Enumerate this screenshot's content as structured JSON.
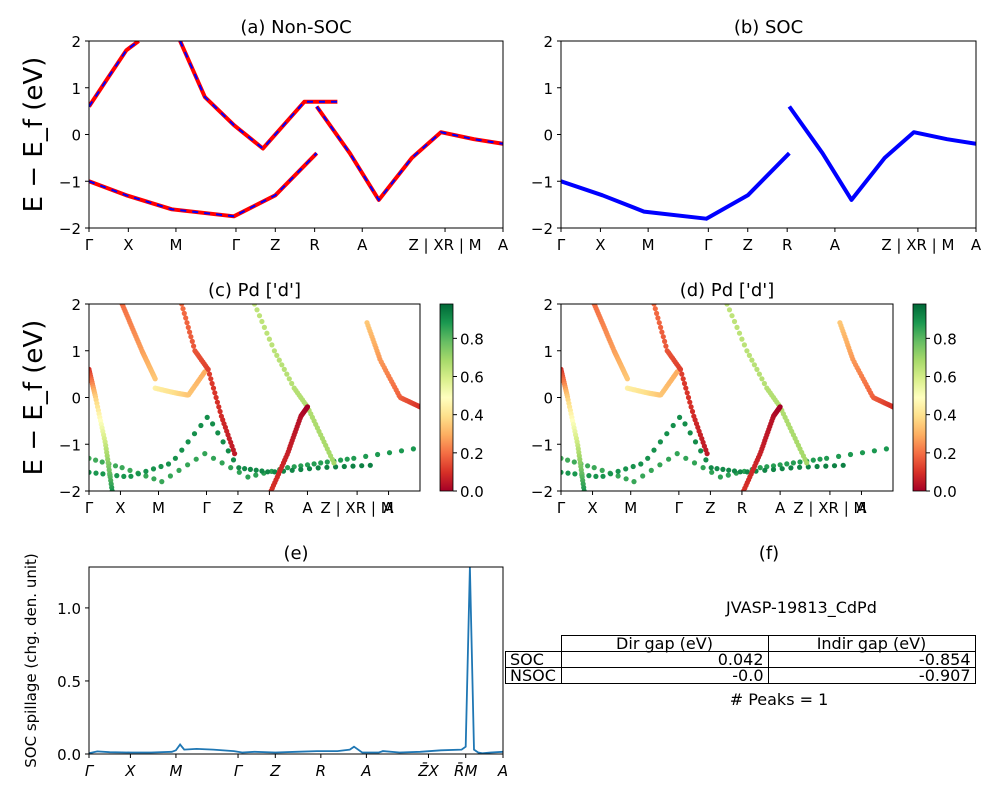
{
  "chart_data": [
    {
      "type": "line",
      "title": "(a) Non-SOC",
      "ylabel": "E − E_f (eV)",
      "ylim": [
        -2,
        2
      ],
      "yticks": [
        "−2",
        "−1",
        "0",
        "1",
        "2"
      ],
      "xticks": [
        "Γ",
        "X",
        "M",
        "Γ",
        "Z",
        "R",
        "A",
        "Z | XR | M",
        "A"
      ],
      "series": [
        {
          "color": "#ff0000",
          "dash_color": "#0000ff",
          "x": [
            0,
            0.045,
            0.09,
            0.12
          ],
          "y": [
            0.6,
            1.2,
            1.8,
            2.0
          ]
        },
        {
          "color": "#ff0000",
          "dash_color": "#0000ff",
          "x": [
            0,
            0.09,
            0.2,
            0.35,
            0.45,
            0.55
          ],
          "y": [
            -1.0,
            -1.3,
            -1.6,
            -1.75,
            -1.3,
            -0.4
          ]
        },
        {
          "color": "#ff0000",
          "dash_color": "#0000ff",
          "x": [
            0.22,
            0.28,
            0.35,
            0.42,
            0.52,
            0.6
          ],
          "y": [
            2.0,
            0.8,
            0.2,
            -0.3,
            0.7,
            0.7
          ]
        },
        {
          "color": "#ff0000",
          "dash_color": "#0000ff",
          "x": [
            0.55,
            0.63,
            0.7,
            0.78,
            0.85,
            0.93,
            1.0
          ],
          "y": [
            0.6,
            -0.4,
            -1.4,
            -0.5,
            0.05,
            -0.1,
            -0.2
          ]
        }
      ]
    },
    {
      "type": "line",
      "title": "(b) SOC",
      "ylim": [
        -2,
        2
      ],
      "yticks": [
        "−2",
        "−1",
        "0",
        "1",
        "2"
      ],
      "xticks": [
        "Γ",
        "X",
        "M",
        "Γ",
        "Z",
        "R",
        "A",
        "Z | XR | M",
        "A"
      ],
      "series": [
        {
          "color": "#0000ff",
          "x": [
            0,
            0.1,
            0.2,
            0.35,
            0.45,
            0.55
          ],
          "y": [
            -1.0,
            -1.3,
            -1.65,
            -1.8,
            -1.3,
            -0.4
          ]
        },
        {
          "color": "#0000ff",
          "x": [
            0.55,
            0.63,
            0.7,
            0.78,
            0.85,
            0.93,
            1.0
          ],
          "y": [
            0.6,
            -0.4,
            -1.4,
            -0.5,
            0.05,
            -0.1,
            -0.2
          ]
        }
      ]
    },
    {
      "type": "scatter",
      "title": "(c)  Pd ['d']",
      "ylabel": "E − E_f (eV)",
      "ylim": [
        -2,
        2
      ],
      "yticks": [
        "−2",
        "−1",
        "0",
        "1",
        "2"
      ],
      "xticks": [
        "Γ",
        "X",
        "M",
        "Γ",
        "Z",
        "R",
        "A",
        "Z | XR | M",
        "A"
      ],
      "colorbar": {
        "ticks": [
          "0.0",
          "0.2",
          "0.4",
          "0.6",
          "0.8"
        ],
        "range": [
          0,
          0.98
        ],
        "colormap": "RdYlGn"
      }
    },
    {
      "type": "scatter",
      "title": "(d) Pd ['d']",
      "ylim": [
        -2,
        2
      ],
      "yticks": [
        "−2",
        "−1",
        "0",
        "1",
        "2"
      ],
      "xticks": [
        "Γ",
        "X",
        "M",
        "Γ",
        "Z",
        "R",
        "A",
        "Z | XR | M",
        "A"
      ],
      "colorbar": {
        "ticks": [
          "0.0",
          "0.2",
          "0.4",
          "0.6",
          "0.8"
        ],
        "range": [
          0,
          0.98
        ],
        "colormap": "RdYlGn"
      }
    },
    {
      "type": "line",
      "title": "(e)",
      "ylabel": "SOC spillage (chg. den. unit)",
      "ylim": [
        0,
        1.28
      ],
      "yticks": [
        "0.0",
        "0.5",
        "1.0"
      ],
      "xticks": [
        "Γ",
        "X",
        "M",
        "Γ",
        "Z",
        "R",
        "A",
        "Z̄X",
        "R̄M",
        "A"
      ],
      "series": [
        {
          "color": "#1f77b4",
          "x": [
            0,
            0.02,
            0.05,
            0.1,
            0.15,
            0.2,
            0.21,
            0.22,
            0.23,
            0.26,
            0.3,
            0.35,
            0.37,
            0.4,
            0.45,
            0.5,
            0.55,
            0.6,
            0.63,
            0.64,
            0.66,
            0.7,
            0.71,
            0.75,
            0.8,
            0.85,
            0.9,
            0.91,
            0.92,
            0.93,
            0.94,
            0.95,
            0.97,
            1.0
          ],
          "y": [
            0.005,
            0.018,
            0.012,
            0.01,
            0.01,
            0.015,
            0.025,
            0.065,
            0.03,
            0.035,
            0.03,
            0.02,
            0.01,
            0.015,
            0.01,
            0.015,
            0.02,
            0.02,
            0.03,
            0.05,
            0.01,
            0.01,
            0.02,
            0.01,
            0.015,
            0.025,
            0.03,
            0.05,
            1.28,
            0.03,
            0.01,
            0.005,
            0.01,
            0.015
          ]
        }
      ]
    }
  ],
  "info": {
    "title": "(f)",
    "material": "JVASP-19813_CdPd",
    "table": {
      "headers": [
        "Dir gap (eV)",
        "Indir gap (eV)"
      ],
      "rows": [
        {
          "label": "SOC",
          "dir": "0.042",
          "indir": "-0.854"
        },
        {
          "label": "NSOC",
          "dir": "-0.0",
          "indir": "-0.907"
        }
      ]
    },
    "peaks": "# Peaks = 1"
  },
  "colors": {
    "nsoc_line": "#ff0000",
    "nsoc_dash": "#0000ff",
    "soc_line": "#0000ff",
    "spillage": "#1f77b4"
  }
}
